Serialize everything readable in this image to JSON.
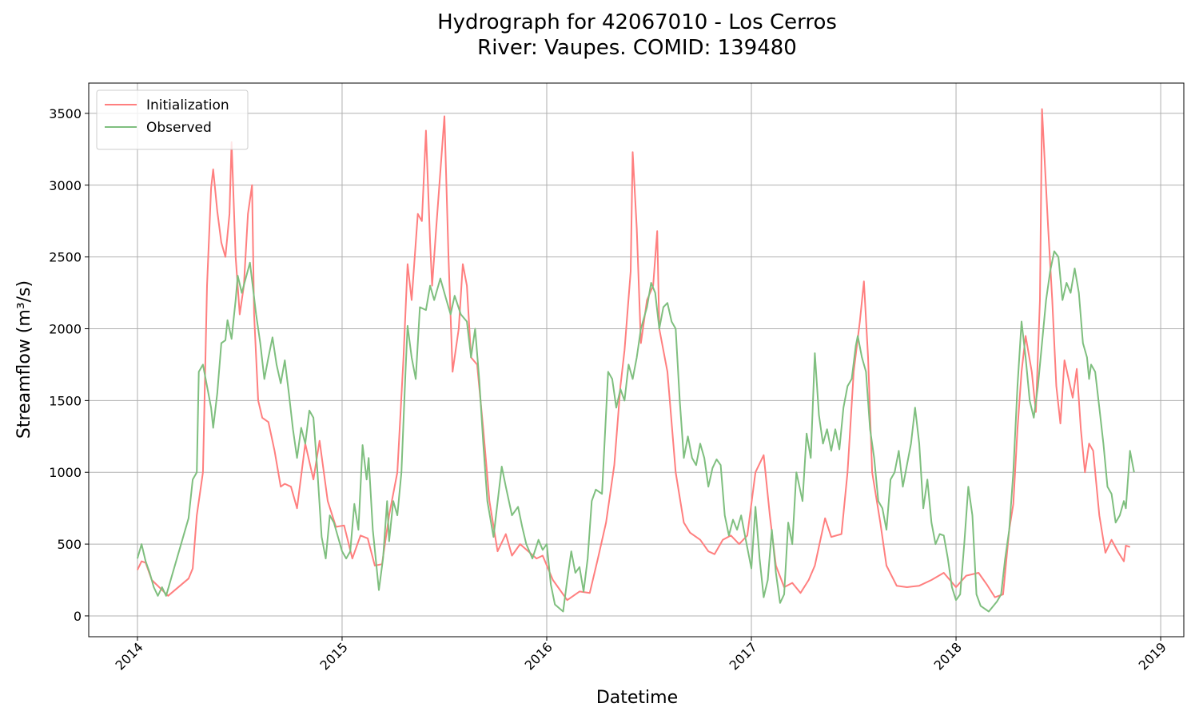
{
  "chart_data": {
    "type": "line",
    "title": "Hydrograph for 42067010 - Los Cerros",
    "subtitle": "River: Vaupes. COMID: 139480",
    "xlabel": "Datetime",
    "ylabel": "Streamflow (m³/s)",
    "xlim": [
      2013.762,
      2019.113
    ],
    "ylim": [
      -145,
      3711
    ],
    "xticks": [
      2014,
      2015,
      2016,
      2017,
      2018,
      2019
    ],
    "yticks": [
      0,
      500,
      1000,
      1500,
      2000,
      2500,
      3000,
      3500
    ],
    "grid": true,
    "legend": "upper-left",
    "series": [
      {
        "name": "Initialization",
        "color": "#ff7f7f",
        "x": [
          2014.0,
          2014.02,
          2014.04,
          2014.07,
          2014.15,
          2014.25,
          2014.27,
          2014.29,
          2014.32,
          2014.34,
          2014.36,
          2014.37,
          2014.39,
          2014.41,
          2014.43,
          2014.45,
          2014.46,
          2014.48,
          2014.5,
          2014.52,
          2014.54,
          2014.56,
          2014.57,
          2014.59,
          2014.61,
          2014.64,
          2014.67,
          2014.7,
          2014.72,
          2014.75,
          2014.78,
          2014.82,
          2014.86,
          2014.89,
          2014.93,
          2014.97,
          2015.01,
          2015.05,
          2015.09,
          2015.125,
          2015.16,
          2015.195,
          2015.23,
          2015.27,
          2015.3,
          2015.32,
          2015.34,
          2015.37,
          2015.39,
          2015.41,
          2015.43,
          2015.44,
          2015.46,
          2015.5,
          2015.52,
          2015.54,
          2015.57,
          2015.59,
          2015.61,
          2015.63,
          2015.66,
          2015.69,
          2015.72,
          2015.76,
          2015.8,
          2015.83,
          2015.87,
          2015.91,
          2015.95,
          2015.98,
          2016.03,
          2016.1,
          2016.16,
          2016.21,
          2016.25,
          2016.29,
          2016.33,
          2016.36,
          2016.38,
          2016.41,
          2016.42,
          2016.44,
          2016.46,
          2016.49,
          2016.52,
          2016.54,
          2016.55,
          2016.59,
          2016.63,
          2016.67,
          2016.7,
          2016.75,
          2016.79,
          2016.82,
          2016.86,
          2016.9,
          2016.94,
          2016.98,
          2017.02,
          2017.06,
          2017.09,
          2017.12,
          2017.16,
          2017.2,
          2017.24,
          2017.28,
          2017.31,
          2017.36,
          2017.39,
          2017.44,
          2017.47,
          2017.5,
          2017.53,
          2017.55,
          2017.57,
          2017.59,
          2017.63,
          2017.66,
          2017.71,
          2017.76,
          2017.82,
          2017.88,
          2017.94,
          2018.0,
          2018.05,
          2018.11,
          2018.15,
          2018.19,
          2018.23,
          2018.26,
          2018.28,
          2018.3,
          2018.32,
          2018.34,
          2018.37,
          2018.39,
          2018.41,
          2018.42,
          2018.45,
          2018.47,
          2018.49,
          2018.51,
          2018.53,
          2018.55,
          2018.57,
          2018.59,
          2018.61,
          2018.63,
          2018.65,
          2018.67,
          2018.7,
          2018.73,
          2018.76,
          2018.79,
          2018.82,
          2018.83,
          2018.85
        ],
        "values": [
          320,
          380,
          370,
          250,
          140,
          260,
          330,
          700,
          1000,
          2300,
          2980,
          3110,
          2820,
          2600,
          2500,
          2800,
          3300,
          2500,
          2100,
          2300,
          2800,
          3000,
          2100,
          1500,
          1380,
          1350,
          1150,
          900,
          920,
          900,
          750,
          1200,
          950,
          1220,
          800,
          620,
          630,
          400,
          560,
          540,
          350,
          360,
          700,
          1000,
          1800,
          2450,
          2200,
          2800,
          2750,
          3380,
          2600,
          2300,
          2700,
          3480,
          2500,
          1700,
          2000,
          2450,
          2300,
          1800,
          1750,
          1300,
          800,
          450,
          570,
          420,
          500,
          450,
          400,
          420,
          250,
          110,
          170,
          160,
          400,
          650,
          1050,
          1600,
          1850,
          2400,
          3230,
          2700,
          1900,
          2200,
          2300,
          2680,
          2000,
          1700,
          1000,
          650,
          580,
          530,
          450,
          430,
          530,
          560,
          500,
          560,
          1000,
          1120,
          700,
          350,
          200,
          230,
          160,
          250,
          350,
          680,
          550,
          570,
          1000,
          1700,
          2050,
          2330,
          1800,
          1000,
          650,
          350,
          210,
          200,
          210,
          250,
          300,
          200,
          280,
          300,
          220,
          130,
          150,
          600,
          780,
          1300,
          1700,
          1950,
          1700,
          1420,
          2200,
          3530,
          2700,
          2200,
          1600,
          1340,
          1780,
          1650,
          1520,
          1720,
          1300,
          1000,
          1200,
          1150,
          700,
          440,
          530,
          450,
          380,
          490,
          480
        ]
      },
      {
        "name": "Observed",
        "color": "#7fbf7f",
        "x": [
          2014.0,
          2014.02,
          2014.04,
          2014.06,
          2014.08,
          2014.1,
          2014.12,
          2014.14,
          2014.25,
          2014.27,
          2014.29,
          2014.3,
          2014.32,
          2014.34,
          2014.36,
          2014.37,
          2014.39,
          2014.41,
          2014.43,
          2014.44,
          2014.46,
          2014.48,
          2014.49,
          2014.51,
          2014.55,
          2014.58,
          2014.6,
          2014.62,
          2014.64,
          2014.66,
          2014.68,
          2014.7,
          2014.72,
          2014.74,
          2014.76,
          2014.78,
          2014.8,
          2014.82,
          2014.84,
          2014.86,
          2014.88,
          2014.9,
          2014.92,
          2014.94,
          2014.96,
          2015.0,
          2015.02,
          2015.04,
          2015.06,
          2015.08,
          2015.1,
          2015.12,
          2015.13,
          2015.15,
          2015.18,
          2015.2,
          2015.22,
          2015.23,
          2015.25,
          2015.27,
          2015.29,
          2015.31,
          2015.32,
          2015.34,
          2015.36,
          2015.38,
          2015.41,
          2015.43,
          2015.45,
          2015.48,
          2015.51,
          2015.53,
          2015.55,
          2015.58,
          2015.61,
          2015.63,
          2015.65,
          2015.67,
          2015.69,
          2015.71,
          2015.74,
          2015.78,
          2015.8,
          2015.83,
          2015.86,
          2015.88,
          2015.9,
          2015.93,
          2015.96,
          2015.98,
          2016.0,
          2016.02,
          2016.04,
          2016.08,
          2016.1,
          2016.12,
          2016.14,
          2016.16,
          2016.18,
          2016.2,
          2016.22,
          2016.24,
          2016.27,
          2016.3,
          2016.32,
          2016.34,
          2016.36,
          2016.38,
          2016.4,
          2016.42,
          2016.44,
          2016.46,
          2016.49,
          2016.51,
          2016.53,
          2016.55,
          2016.57,
          2016.59,
          2016.61,
          2016.63,
          2016.65,
          2016.67,
          2016.69,
          2016.71,
          2016.73,
          2016.75,
          2016.77,
          2016.79,
          2016.81,
          2016.83,
          2016.85,
          2016.87,
          2016.89,
          2016.91,
          2016.93,
          2016.95,
          2016.97,
          2017.0,
          2017.02,
          2017.04,
          2017.06,
          2017.08,
          2017.1,
          2017.12,
          2017.14,
          2017.16,
          2017.18,
          2017.2,
          2017.22,
          2017.25,
          2017.27,
          2017.29,
          2017.31,
          2017.33,
          2017.35,
          2017.37,
          2017.39,
          2017.41,
          2017.43,
          2017.45,
          2017.47,
          2017.49,
          2017.51,
          2017.52,
          2017.54,
          2017.56,
          2017.58,
          2017.6,
          2017.62,
          2017.64,
          2017.66,
          2017.68,
          2017.7,
          2017.72,
          2017.74,
          2017.76,
          2017.78,
          2017.8,
          2017.82,
          2017.84,
          2017.86,
          2017.88,
          2017.9,
          2017.92,
          2017.94,
          2017.96,
          2017.98,
          2018.0,
          2018.02,
          2018.04,
          2018.06,
          2018.08,
          2018.1,
          2018.12,
          2018.16,
          2018.2,
          2018.22,
          2018.24,
          2018.26,
          2018.28,
          2018.3,
          2018.32,
          2018.34,
          2018.36,
          2018.38,
          2018.4,
          2018.42,
          2018.44,
          2018.46,
          2018.48,
          2018.5,
          2018.52,
          2018.54,
          2018.56,
          2018.58,
          2018.6,
          2018.62,
          2018.64,
          2018.65,
          2018.66,
          2018.68,
          2018.7,
          2018.72,
          2018.74,
          2018.76,
          2018.78,
          2018.8,
          2018.82,
          2018.83,
          2018.85,
          2018.87
        ],
        "values": [
          400,
          500,
          380,
          300,
          200,
          140,
          200,
          140,
          680,
          950,
          1000,
          1700,
          1750,
          1600,
          1450,
          1310,
          1550,
          1900,
          1920,
          2060,
          1930,
          2200,
          2370,
          2250,
          2460,
          2100,
          1900,
          1650,
          1800,
          1940,
          1750,
          1620,
          1780,
          1550,
          1300,
          1100,
          1310,
          1200,
          1430,
          1380,
          1000,
          550,
          400,
          700,
          650,
          450,
          400,
          450,
          780,
          600,
          1190,
          950,
          1100,
          600,
          180,
          400,
          800,
          520,
          800,
          700,
          1000,
          1700,
          2020,
          1800,
          1650,
          2150,
          2130,
          2300,
          2200,
          2350,
          2200,
          2100,
          2230,
          2100,
          2050,
          1800,
          2000,
          1650,
          1200,
          800,
          550,
          1040,
          900,
          700,
          760,
          620,
          500,
          400,
          530,
          460,
          500,
          220,
          80,
          30,
          250,
          450,
          300,
          340,
          170,
          400,
          800,
          880,
          850,
          1700,
          1650,
          1450,
          1580,
          1500,
          1750,
          1650,
          1800,
          2000,
          2150,
          2320,
          2250,
          2000,
          2150,
          2180,
          2050,
          2000,
          1500,
          1100,
          1250,
          1100,
          1050,
          1200,
          1100,
          900,
          1030,
          1090,
          1050,
          700,
          560,
          670,
          600,
          700,
          550,
          330,
          760,
          400,
          130,
          250,
          600,
          300,
          90,
          150,
          650,
          500,
          1000,
          800,
          1270,
          1100,
          1830,
          1400,
          1200,
          1300,
          1150,
          1300,
          1160,
          1450,
          1600,
          1650,
          1880,
          1950,
          1800,
          1700,
          1300,
          1100,
          800,
          750,
          600,
          950,
          1000,
          1150,
          900,
          1050,
          1200,
          1450,
          1200,
          750,
          950,
          650,
          500,
          570,
          560,
          400,
          200,
          110,
          150,
          500,
          900,
          700,
          150,
          70,
          30,
          100,
          150,
          400,
          600,
          1000,
          1600,
          2050,
          1800,
          1500,
          1380,
          1600,
          1900,
          2200,
          2400,
          2540,
          2500,
          2200,
          2320,
          2250,
          2420,
          2250,
          1900,
          1800,
          1650,
          1750,
          1700,
          1450,
          1200,
          900,
          850,
          650,
          700,
          800,
          750,
          1150,
          1000
        ]
      }
    ]
  }
}
